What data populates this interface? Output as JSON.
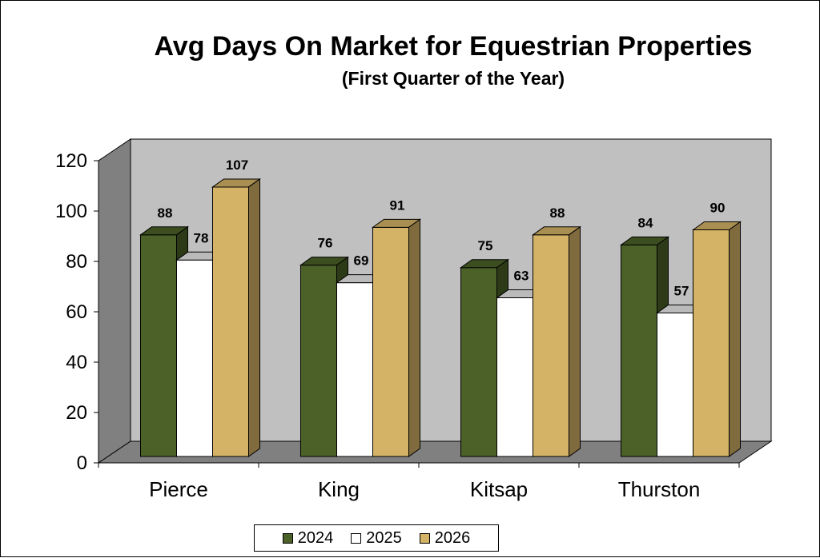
{
  "chart_data": {
    "type": "bar",
    "title": "Avg Days On Market for Equestrian Properties",
    "subtitle": "(First Quarter of the Year)",
    "categories": [
      "Pierce",
      "King",
      "Kitsap",
      "Thurston"
    ],
    "series": [
      {
        "name": "2024",
        "values": [
          88,
          76,
          75,
          84
        ],
        "color": "#4b6128"
      },
      {
        "name": "2025",
        "values": [
          78,
          69,
          63,
          57
        ],
        "color": "#ffffff"
      },
      {
        "name": "2026",
        "values": [
          107,
          91,
          88,
          90
        ],
        "color": "#d4b366"
      }
    ],
    "ylim": [
      0,
      120
    ],
    "yticks": [
      "0",
      "20",
      "40",
      "60",
      "80",
      "100",
      "120"
    ],
    "grid": false,
    "legend_position": "bottom",
    "style": "3d",
    "colors": {
      "plot_back": "#c0c0c0",
      "plot_side": "#808080",
      "plot_floor": "#808080"
    }
  }
}
